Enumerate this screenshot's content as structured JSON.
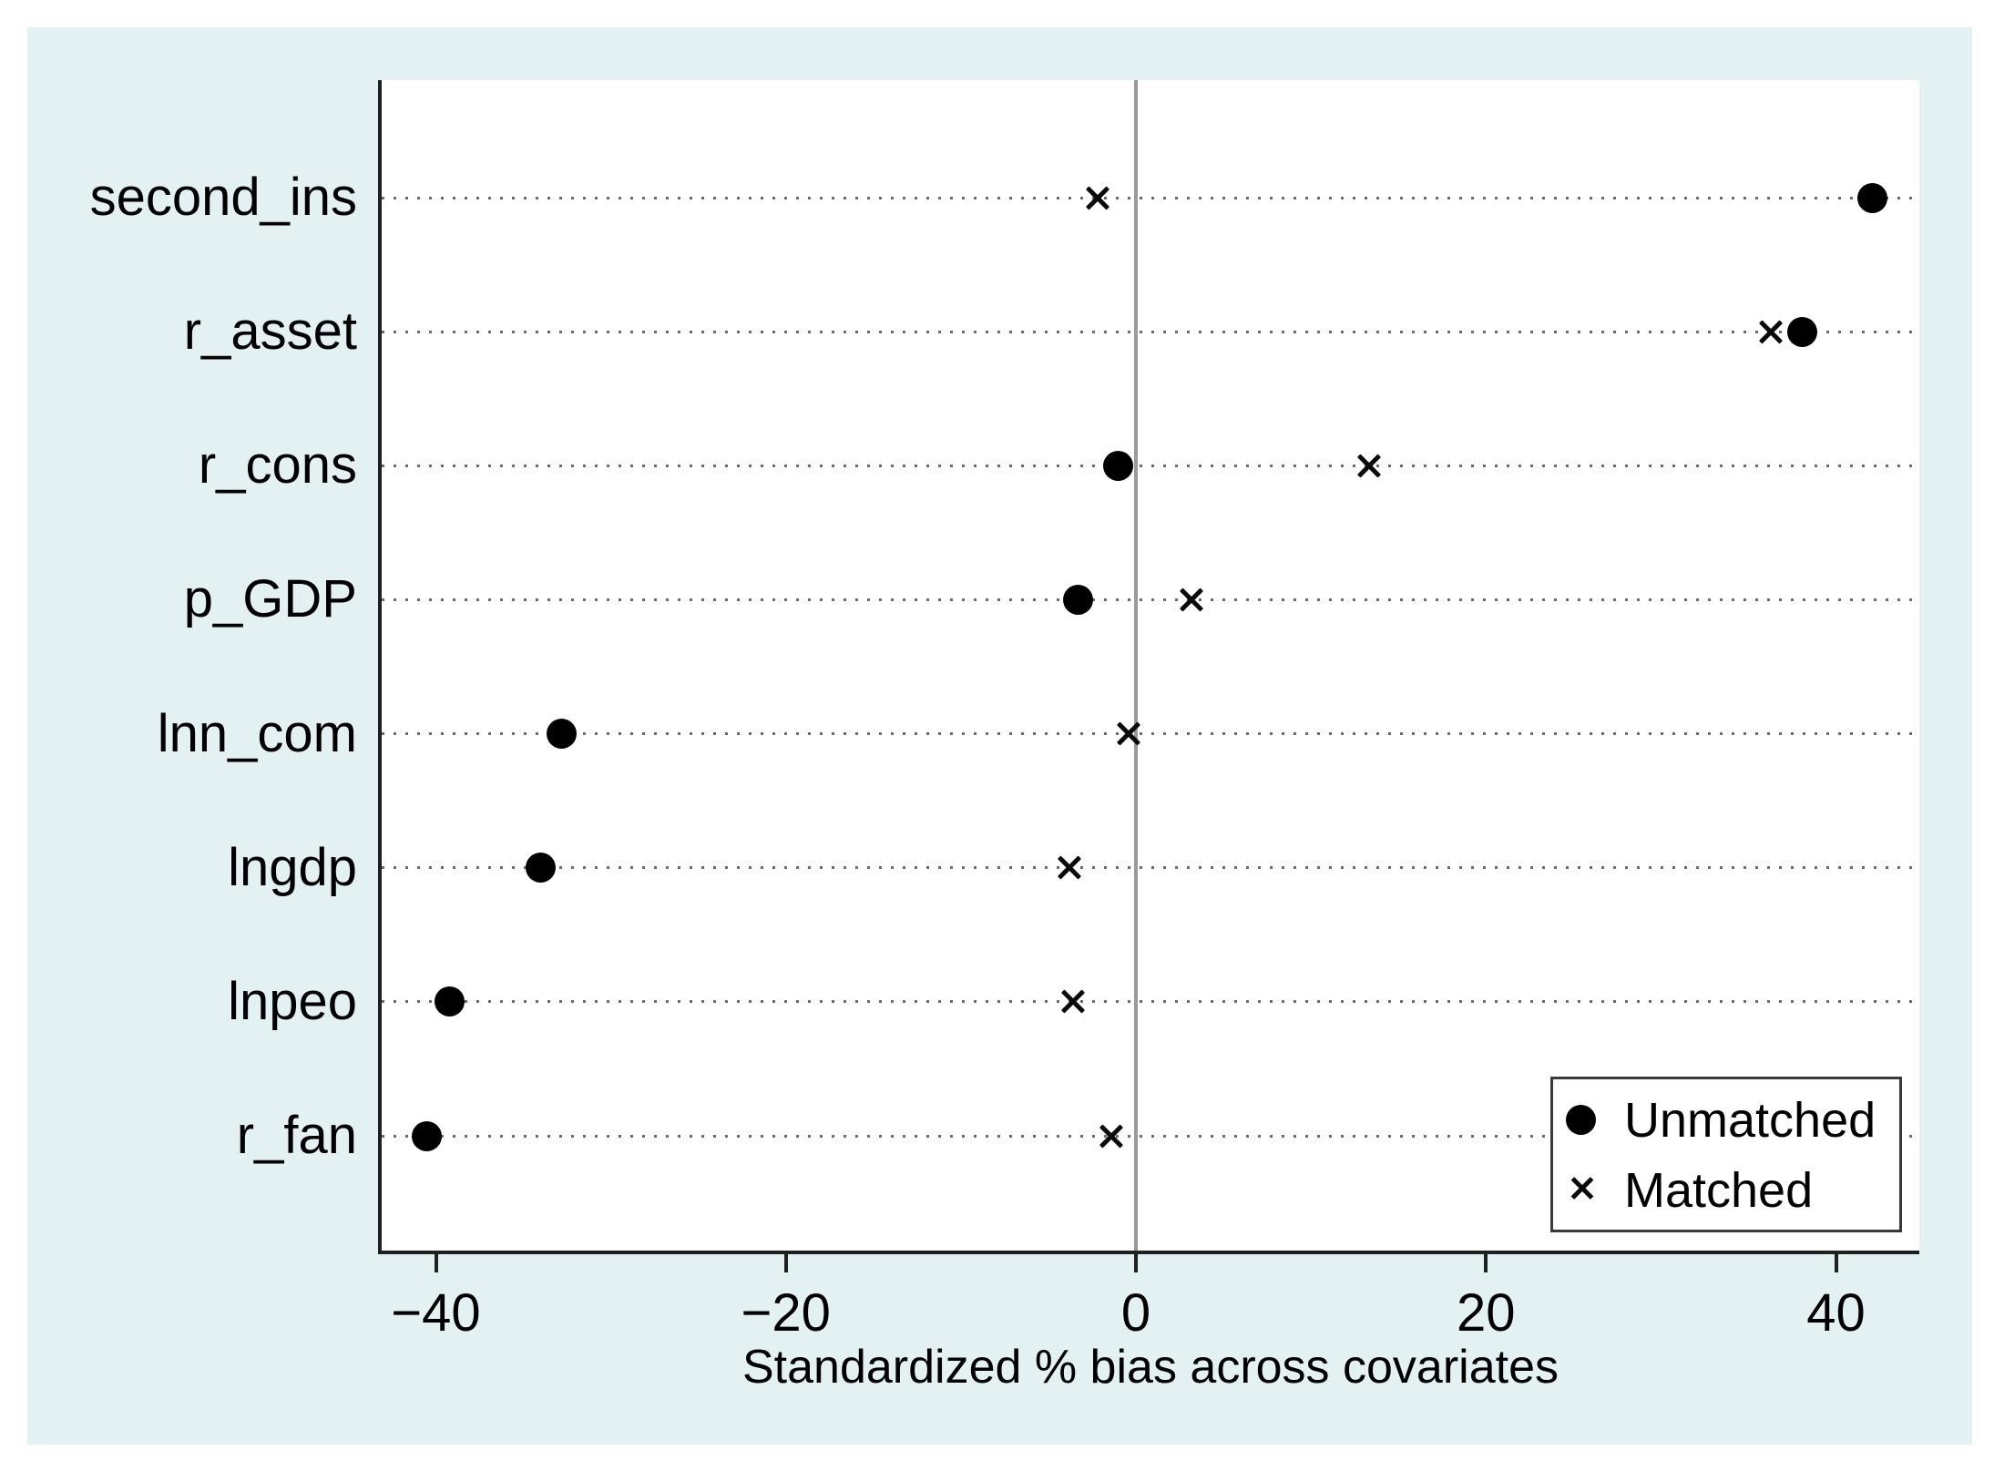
{
  "figure": {
    "colors": {
      "canvas_bg": "#e4f1f2",
      "plot_bg": "#ffffff",
      "axis": "#202020",
      "grid_dots": "#6b6b6b",
      "zero_line": "#9a9a9a",
      "marker": "#000000",
      "text": "#000000",
      "legend_border": "#3a3a3a"
    }
  },
  "chart_data": {
    "type": "scatter",
    "subtype": "horizontal-dot-plot (covariate balance plot)",
    "title": "",
    "xlabel": "Standardized % bias across covariates",
    "ylabel": "",
    "xlim": [
      -43.2,
      44.8
    ],
    "xticks": [
      -40,
      -20,
      0,
      20,
      40
    ],
    "xtick_labels": [
      "−40",
      "−20",
      "0",
      "20",
      "40"
    ],
    "grid": "dotted horizontal gridline per category",
    "zero_reference_line": true,
    "legend_position": "inside bottom-right",
    "categories": [
      "second_ins",
      "r_asset",
      "r_cons",
      "p_GDP",
      "lnn_com",
      "lngdp",
      "lnpeo",
      "r_fan"
    ],
    "series": [
      {
        "name": "Unmatched",
        "marker": "filled-circle",
        "values": [
          42.1,
          38.1,
          -1.0,
          -3.3,
          -32.8,
          -34.0,
          -39.2,
          -40.5
        ]
      },
      {
        "name": "Matched",
        "marker": "x",
        "values": [
          -2.2,
          36.3,
          13.3,
          3.2,
          -0.4,
          -3.8,
          -3.6,
          -1.4
        ]
      }
    ]
  }
}
